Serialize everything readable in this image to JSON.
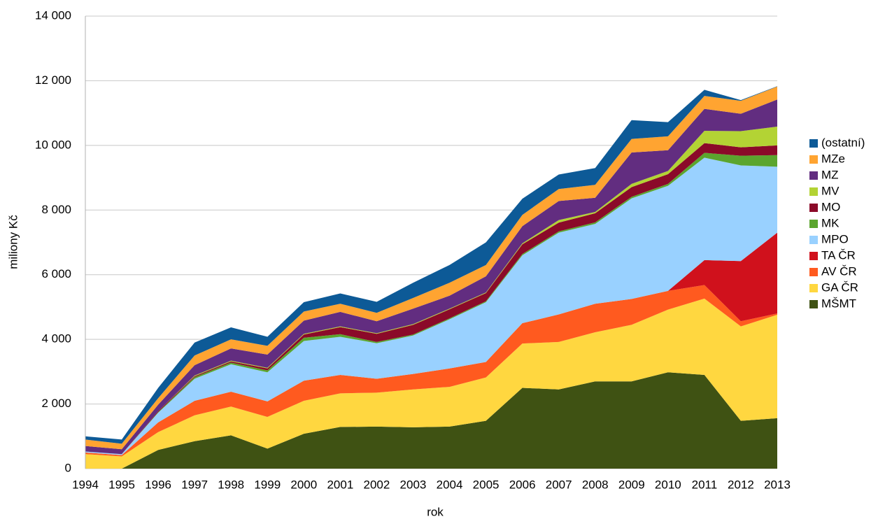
{
  "chart_data": {
    "type": "stacked_area",
    "x_label": "rok",
    "y_label": "miliony Kč",
    "categories": [
      "1994",
      "1995",
      "1996",
      "1997",
      "1998",
      "1999",
      "2000",
      "2001",
      "2002",
      "2003",
      "2004",
      "2005",
      "2006",
      "2007",
      "2008",
      "2009",
      "2010",
      "2011",
      "2012",
      "2013"
    ],
    "ylim": [
      0,
      14000
    ],
    "yticks": [
      0,
      {
        "value": 2000,
        "label": "2 000"
      },
      {
        "value": 4000,
        "label": "4 000"
      },
      {
        "value": 6000,
        "label": "6 000"
      },
      {
        "value": 8000,
        "label": "8 000"
      },
      {
        "value": 10000,
        "label": "10 000"
      },
      {
        "value": 12000,
        "label": "12 000"
      },
      {
        "value": 14000,
        "label": "14 000"
      }
    ],
    "grid": true,
    "legend": "right",
    "series": [
      {
        "name": "MŠMT",
        "color": "#3f5213",
        "values": [
          0,
          0,
          580,
          850,
          1030,
          620,
          1080,
          1290,
          1300,
          1280,
          1300,
          1480,
          2500,
          2450,
          2700,
          2700,
          2980,
          2900,
          1480,
          1560
        ]
      },
      {
        "name": "GA ČR",
        "color": "#ffd740",
        "values": [
          450,
          380,
          550,
          800,
          890,
          980,
          1020,
          1040,
          1050,
          1170,
          1230,
          1340,
          1370,
          1470,
          1520,
          1750,
          1940,
          2360,
          2920,
          3200
        ]
      },
      {
        "name": "AV ČR",
        "color": "#ff5a1f",
        "values": [
          50,
          40,
          300,
          450,
          460,
          480,
          620,
          570,
          430,
          480,
          570,
          480,
          630,
          850,
          880,
          800,
          580,
          420,
          160,
          40
        ]
      },
      {
        "name": "TA ČR",
        "color": "#d0111c",
        "values": [
          0,
          0,
          0,
          0,
          0,
          0,
          0,
          0,
          0,
          0,
          0,
          0,
          0,
          0,
          0,
          0,
          0,
          770,
          1860,
          2500
        ]
      },
      {
        "name": "MPO",
        "color": "#99d1ff",
        "values": [
          30,
          30,
          300,
          680,
          850,
          900,
          1230,
          1180,
          1100,
          1190,
          1520,
          1850,
          2100,
          2530,
          2470,
          3110,
          3250,
          3170,
          2960,
          2040
        ]
      },
      {
        "name": "MK",
        "color": "#5ba52e",
        "values": [
          0,
          0,
          20,
          50,
          50,
          60,
          100,
          80,
          40,
          30,
          30,
          30,
          40,
          40,
          50,
          50,
          60,
          150,
          300,
          360
        ]
      },
      {
        "name": "MO",
        "color": "#8b0a29",
        "values": [
          0,
          0,
          30,
          30,
          40,
          60,
          100,
          220,
          250,
          300,
          280,
          250,
          300,
          270,
          280,
          300,
          300,
          300,
          260,
          300
        ]
      },
      {
        "name": "MV",
        "color": "#b3d334",
        "values": [
          0,
          0,
          0,
          20,
          20,
          20,
          20,
          20,
          20,
          20,
          20,
          20,
          30,
          80,
          40,
          100,
          100,
          380,
          500,
          580
        ]
      },
      {
        "name": "MZ",
        "color": "#622d80",
        "values": [
          170,
          150,
          200,
          320,
          380,
          410,
          410,
          450,
          370,
          480,
          400,
          500,
          530,
          590,
          440,
          970,
          640,
          680,
          540,
          840
        ]
      },
      {
        "name": "MZe",
        "color": "#ffa431",
        "values": [
          200,
          170,
          200,
          300,
          280,
          270,
          280,
          250,
          260,
          330,
          400,
          350,
          350,
          370,
          400,
          420,
          430,
          400,
          400,
          400
        ]
      },
      {
        "name": "(ostatní)",
        "color": "#0d5a97",
        "values": [
          100,
          130,
          320,
          400,
          370,
          280,
          290,
          320,
          340,
          470,
          550,
          700,
          500,
          450,
          520,
          580,
          440,
          190,
          20,
          10
        ]
      }
    ]
  }
}
